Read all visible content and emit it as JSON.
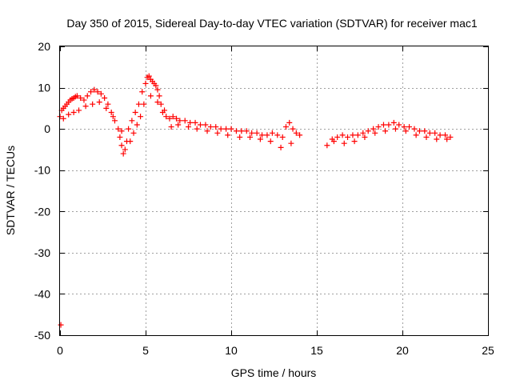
{
  "chart_data": {
    "type": "scatter",
    "title": "Day 350 of 2015, Sidereal Day-to-day VTEC variation (SDTVAR) for receiver mac1",
    "xlabel": "GPS time / hours",
    "ylabel": "SDTVAR / TECUs",
    "xlim": [
      0,
      25
    ],
    "ylim": [
      -50,
      20
    ],
    "xticks": [
      0,
      5,
      10,
      15,
      20,
      25
    ],
    "yticks": [
      -50,
      -40,
      -30,
      -20,
      -10,
      0,
      10,
      20
    ],
    "xtick_labels": [
      "0",
      "5",
      "10",
      "15",
      "20",
      "25"
    ],
    "ytick_labels": [
      "-50",
      "-40",
      "-30",
      "-20",
      "-10",
      "0",
      "10",
      "20"
    ],
    "grid": true,
    "marker": "plus",
    "color": "#ff0000",
    "series": [
      {
        "name": "mac1",
        "x": [
          0.0,
          0.1,
          0.2,
          0.3,
          0.4,
          0.5,
          0.6,
          0.7,
          0.8,
          0.9,
          1.0,
          1.2,
          1.4,
          1.6,
          1.8,
          2.0,
          2.2,
          2.4,
          2.6,
          2.8,
          3.0,
          3.2,
          3.4,
          3.5,
          3.6,
          3.7,
          3.8,
          3.9,
          4.0,
          4.2,
          4.4,
          4.6,
          4.8,
          5.0,
          5.1,
          5.2,
          5.3,
          5.4,
          5.5,
          5.6,
          5.7,
          5.8,
          5.9,
          6.0,
          6.2,
          6.4,
          6.6,
          6.8,
          7.0,
          7.3,
          7.6,
          7.9,
          8.2,
          8.5,
          8.8,
          9.1,
          9.4,
          9.7,
          10.0,
          10.3,
          10.6,
          10.9,
          11.2,
          11.5,
          11.8,
          12.1,
          12.4,
          12.7,
          13.0,
          13.2,
          13.4,
          13.6,
          13.8,
          14.0,
          15.6,
          15.9,
          16.2,
          16.5,
          16.8,
          17.1,
          17.4,
          17.7,
          18.0,
          18.3,
          18.6,
          18.9,
          19.2,
          19.5,
          19.8,
          20.1,
          20.4,
          20.7,
          21.0,
          21.3,
          21.6,
          21.9,
          22.2,
          22.5,
          22.8,
          0.2,
          0.5,
          0.8,
          1.1,
          1.5,
          1.9,
          2.3,
          2.7,
          3.1,
          3.6,
          4.1,
          4.3,
          4.5,
          4.7,
          4.9,
          5.3,
          5.7,
          6.1,
          6.5,
          6.9,
          7.5,
          8.0,
          8.6,
          9.2,
          9.8,
          10.5,
          11.1,
          11.7,
          12.3,
          12.9,
          13.5,
          16.0,
          16.6,
          17.2,
          17.8,
          18.4,
          19.0,
          19.6,
          20.2,
          20.8,
          21.4,
          22.0,
          22.6,
          0.05
        ],
        "y": [
          3.0,
          4.5,
          5.0,
          5.5,
          6.0,
          6.5,
          7.0,
          7.3,
          7.5,
          7.8,
          8.0,
          7.5,
          7.0,
          8.0,
          9.0,
          9.5,
          9.0,
          8.5,
          7.5,
          6.0,
          4.0,
          2.0,
          0.0,
          -2.0,
          -4.0,
          -6.0,
          -5.0,
          -3.0,
          0.0,
          2.0,
          4.0,
          6.0,
          9.0,
          11.0,
          12.5,
          12.8,
          12.0,
          11.5,
          11.0,
          10.5,
          9.5,
          8.0,
          6.0,
          4.0,
          3.0,
          2.5,
          3.0,
          2.5,
          2.0,
          2.0,
          1.5,
          1.5,
          1.0,
          1.0,
          0.5,
          0.5,
          0.0,
          0.0,
          0.0,
          -0.5,
          -0.5,
          -0.5,
          -1.0,
          -1.0,
          -1.5,
          -1.5,
          -1.0,
          -1.5,
          -2.0,
          0.5,
          1.5,
          0.0,
          -1.0,
          -1.5,
          -4.0,
          -2.5,
          -2.0,
          -1.5,
          -2.0,
          -1.5,
          -1.5,
          -1.0,
          -0.5,
          0.0,
          0.5,
          1.0,
          1.0,
          1.5,
          1.0,
          0.5,
          0.5,
          0.0,
          -0.5,
          -0.5,
          -1.0,
          -1.0,
          -1.5,
          -1.5,
          -2.0,
          2.5,
          3.5,
          4.0,
          4.5,
          5.5,
          6.0,
          6.5,
          5.0,
          3.0,
          -0.5,
          -3.0,
          -1.0,
          1.0,
          3.0,
          6.0,
          8.0,
          6.5,
          4.5,
          0.5,
          1.0,
          0.5,
          0.0,
          -0.5,
          -1.0,
          -1.5,
          -2.0,
          -2.0,
          -2.5,
          -3.0,
          -4.5,
          -3.5,
          -3.0,
          -3.5,
          -3.0,
          -2.0,
          -1.0,
          -0.5,
          0.0,
          -0.5,
          -1.5,
          -2.0,
          -2.5,
          -2.5,
          -47.5
        ]
      }
    ]
  }
}
